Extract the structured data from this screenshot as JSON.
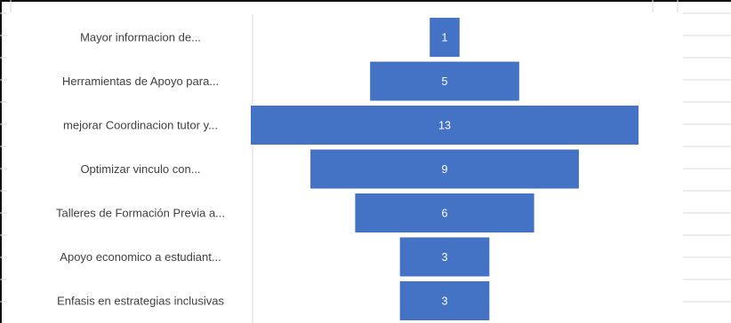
{
  "chart_data": {
    "type": "bar",
    "orientation": "horizontal-funnel",
    "categories": [
      "Mayor informacion de...",
      "Herramientas de Apoyo para...",
      "mejorar Coordinacion tutor y...",
      "Optimizar vinculo con...",
      "Talleres de Formación Previa a...",
      "Apoyo economico a estudiant...",
      "Enfasis en estrategias inclusivas"
    ],
    "values": [
      1,
      5,
      13,
      9,
      6,
      3,
      3
    ],
    "value_labels": [
      "1",
      "5",
      "13",
      "9",
      "6",
      "3",
      "3"
    ],
    "xlim": [
      0,
      13
    ],
    "legend": "none",
    "colors": {
      "bar": "#4472C4",
      "label": "#404040",
      "value_label": "#ffffff",
      "grid": "#D9D9D9"
    }
  }
}
